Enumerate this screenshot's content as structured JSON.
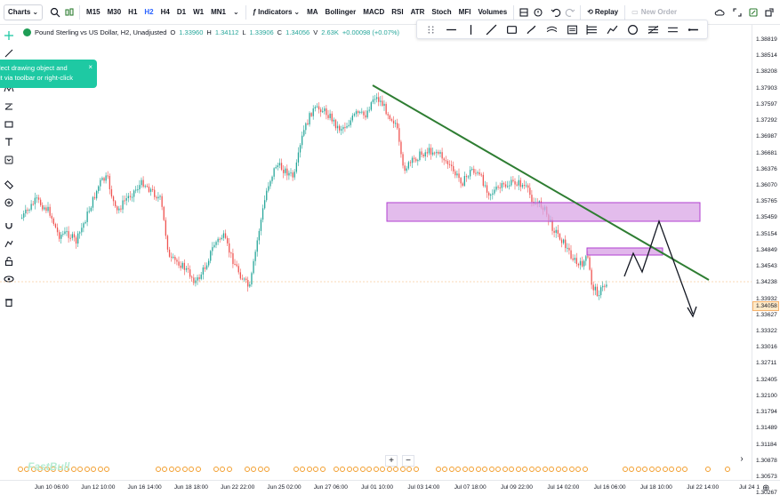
{
  "toolbar": {
    "charts": "Charts",
    "timeframes": [
      "M15",
      "M30",
      "H1",
      "H2",
      "H4",
      "D1",
      "W1",
      "MN1"
    ],
    "active_timeframe": "H2",
    "indicators": "Indicators",
    "studies": [
      "MA",
      "Bollinger",
      "MACD",
      "RSI",
      "ATR",
      "Stoch",
      "MFI",
      "Volumes"
    ],
    "replay": "Replay",
    "new_order": "New Order"
  },
  "legend": {
    "symbol": "Pound Sterling vs US Dollar, H2, Unadjusted",
    "open_label": "O",
    "open": "1.33960",
    "high_label": "H",
    "high": "1.34112",
    "low_label": "L",
    "low": "1.33906",
    "close_label": "C",
    "close": "1.34056",
    "volume_label": "V",
    "volume": "2.63K",
    "change": "+0.00098 (+0.07%)"
  },
  "hint": {
    "line1": "lect drawing object and",
    "line2": "it via toolbar or right-click",
    "close": "×"
  },
  "price_axis": {
    "labels": [
      "1.38819",
      "1.38514",
      "1.38208",
      "1.37903",
      "1.37597",
      "1.37292",
      "1.36987",
      "1.36681",
      "1.36376",
      "1.36070",
      "1.35765",
      "1.35459",
      "1.35154",
      "1.34849",
      "1.34543",
      "1.34238",
      "1.33932",
      "1.33627",
      "1.33322",
      "1.33016",
      "1.32711",
      "1.32405",
      "1.32100",
      "1.31794",
      "1.31489",
      "1.31184",
      "1.30878",
      "1.30573",
      "1.30267"
    ],
    "current_price": "1.34058"
  },
  "time_axis": {
    "labels": [
      "Jun 10 06:00",
      "Jun 12 10:00",
      "Jun 16 14:00",
      "Jun 18 18:00",
      "Jun 22 22:00",
      "Jun 25 02:00",
      "Jun 27 06:00",
      "Jul 01 10:00",
      "Jul 03 14:00",
      "Jul 07 18:00",
      "Jul 09 22:00",
      "Jul 14 02:00",
      "Jul 16 06:00",
      "Jul 18 10:00",
      "Jul 22 14:00",
      "Jul 24 1"
    ]
  },
  "watermark": "FastBull",
  "zoom": {
    "in": "+",
    "out": "−"
  },
  "colors": {
    "up": "#26a69a",
    "down": "#ef5350",
    "trendline": "#2e7d32",
    "zone_fill": "#d9a5e6",
    "zone_stroke": "#b13fd1",
    "accent": "#2962ff",
    "hint_bg": "#1ec9a3",
    "event": "#f29e2e"
  },
  "icons": {
    "top": [
      "search-icon",
      "compare-icon",
      "indicators-icon",
      "layout-icon",
      "alert-icon",
      "undo-icon",
      "redo-icon",
      "replay-icon",
      "cloud-icon",
      "fullscreen-icon",
      "snapshot-icon",
      "share-icon"
    ],
    "drawing": [
      "grip-icon",
      "horizontal-line-icon",
      "vertical-line-icon",
      "trend-line-icon",
      "rectangle-icon",
      "brush-icon",
      "fib-icon",
      "parallel-channel-icon",
      "gann-icon",
      "pitchfork-icon",
      "polyline-icon",
      "circle-icon",
      "fib-fan-icon",
      "more-lines-icon",
      "ray-icon"
    ],
    "left": [
      "crosshair-icon",
      "line-tool-icon",
      "pattern-icon",
      "fib-tool-icon",
      "shape-icon",
      "text-icon",
      "annotation-icon",
      "ruler-icon",
      "zoom-icon",
      "magnet-icon",
      "lock-drawings-icon",
      "unlock-icon",
      "visibility-icon",
      "trash-icon"
    ]
  }
}
